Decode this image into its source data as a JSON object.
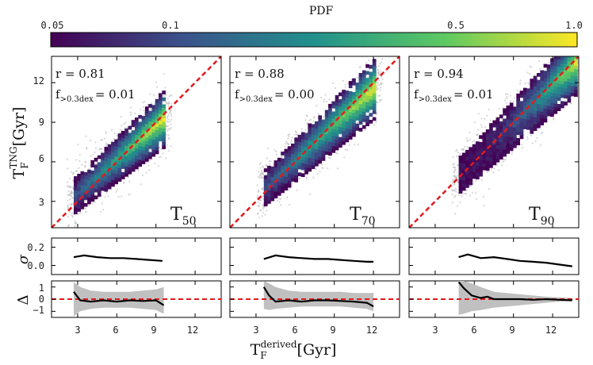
{
  "colorbar": {
    "label": "PDF",
    "ticks": [
      "0.05",
      "0.1",
      "0.5",
      "1.0"
    ],
    "colors": [
      "#440154",
      "#3b528b",
      "#21918c",
      "#5ec962",
      "#fde725"
    ]
  },
  "axes": {
    "ylabel_main": "T",
    "ylabel_main_sup": "TNG",
    "ylabel_main_unit": "[Gyr]",
    "ylabel_sigma": "σ",
    "ylabel_delta": "Δ",
    "xlabel": "T",
    "xlabel_sup": "derived",
    "xlabel_unit": "[Gyr]",
    "f_label": "f",
    "f_sub": ">0.3dex",
    "x_ticks": [
      "3",
      "6",
      "9",
      "12"
    ],
    "y_ticks": [
      "3",
      "6",
      "9",
      "12"
    ],
    "sigma_ticks": [
      "0.2",
      "0.0"
    ],
    "delta_ticks": [
      "1",
      "0",
      "−1"
    ]
  },
  "chart_data": [
    {
      "type": "heatmap",
      "panel_label": "T",
      "panel_sub": "50",
      "r_text": "r = 0.81",
      "f_value": "= 0.01",
      "xlim": [
        1,
        14
      ],
      "ylim": [
        1,
        14
      ],
      "density_x_range": [
        2.7,
        9.5
      ],
      "density_slope": 0.85,
      "sigma_curve": {
        "x": [
          2.7,
          3.5,
          4.5,
          5.5,
          6.5,
          7.5,
          8.5,
          9.5
        ],
        "y": [
          0.09,
          0.11,
          0.09,
          0.08,
          0.08,
          0.07,
          0.06,
          0.05
        ],
        "ylim": [
          -0.1,
          0.3
        ]
      },
      "delta_curve": {
        "x": [
          2.7,
          3.2,
          4,
          5,
          6,
          7,
          8,
          9,
          9.6
        ],
        "y": [
          0.6,
          -0.1,
          -0.2,
          -0.1,
          -0.2,
          -0.1,
          -0.15,
          -0.1,
          -0.5
        ],
        "ylim": [
          -1.5,
          1.5
        ]
      },
      "delta_band": {
        "upper": [
          1.4,
          1.0,
          0.7,
          0.6,
          0.6,
          0.6,
          0.7,
          0.8,
          1.0
        ],
        "lower": [
          -1.4,
          -1.0,
          -0.8,
          -0.7,
          -0.7,
          -0.7,
          -0.8,
          -0.9,
          -1.2
        ]
      }
    },
    {
      "type": "heatmap",
      "panel_label": "T",
      "panel_sub": "70",
      "r_text": "r = 0.88",
      "f_value": "= 0.00",
      "xlim": [
        1,
        14
      ],
      "ylim": [
        1,
        14
      ],
      "density_x_range": [
        3.6,
        12
      ],
      "density_slope": 0.9,
      "sigma_curve": {
        "x": [
          3.6,
          4.5,
          5.5,
          6.5,
          7.5,
          8.5,
          9.5,
          10.5,
          11.5,
          12
        ],
        "y": [
          0.07,
          0.11,
          0.09,
          0.08,
          0.07,
          0.07,
          0.06,
          0.05,
          0.04,
          0.04
        ],
        "ylim": [
          -0.1,
          0.3
        ]
      },
      "delta_curve": {
        "x": [
          3.6,
          4,
          4.5,
          5.5,
          6.5,
          7.5,
          8.5,
          9.5,
          10.5,
          11.5,
          12
        ],
        "y": [
          1.0,
          0.3,
          -0.2,
          -0.1,
          -0.2,
          -0.1,
          -0.1,
          -0.15,
          -0.2,
          -0.3,
          -0.6
        ],
        "ylim": [
          -1.5,
          1.5
        ]
      },
      "delta_band": {
        "upper": [
          1.5,
          1.3,
          1.0,
          0.7,
          0.6,
          0.6,
          0.6,
          0.6,
          0.5,
          0.5,
          0.5
        ],
        "lower": [
          -0.8,
          -0.9,
          -0.8,
          -0.7,
          -0.6,
          -0.6,
          -0.6,
          -0.6,
          -0.7,
          -0.8,
          -1.0
        ]
      }
    },
    {
      "type": "heatmap",
      "panel_label": "T",
      "panel_sub": "90",
      "r_text": "r = 0.94",
      "f_value": "= 0.01",
      "xlim": [
        1,
        14
      ],
      "ylim": [
        1,
        14
      ],
      "density_x_range": [
        4.8,
        13.8
      ],
      "density_slope": 0.95,
      "sigma_curve": {
        "x": [
          4.8,
          5.5,
          6.5,
          7.5,
          8.5,
          9.5,
          10.5,
          11.5,
          12.5,
          13.5
        ],
        "y": [
          0.09,
          0.12,
          0.08,
          0.09,
          0.07,
          0.05,
          0.04,
          0.03,
          0.01,
          -0.01
        ],
        "ylim": [
          -0.1,
          0.3
        ]
      },
      "delta_curve": {
        "x": [
          4.8,
          5.2,
          5.8,
          6.5,
          7,
          7.5,
          8.5,
          9.5,
          10.5,
          11.5,
          12.5,
          13.5
        ],
        "y": [
          1.4,
          0.9,
          0.3,
          0.1,
          0.2,
          0.0,
          0.0,
          0.0,
          -0.05,
          0.0,
          -0.05,
          -0.1
        ],
        "ylim": [
          -1.5,
          1.5
        ]
      },
      "delta_band": {
        "upper": [
          1.5,
          1.5,
          1.3,
          1.0,
          0.8,
          0.6,
          0.5,
          0.4,
          0.3,
          0.2,
          0.15,
          0.1
        ],
        "lower": [
          -1.3,
          -1.2,
          -1.0,
          -0.9,
          -0.8,
          -0.7,
          -0.6,
          -0.5,
          -0.4,
          -0.3,
          -0.2,
          -0.15
        ]
      }
    }
  ]
}
